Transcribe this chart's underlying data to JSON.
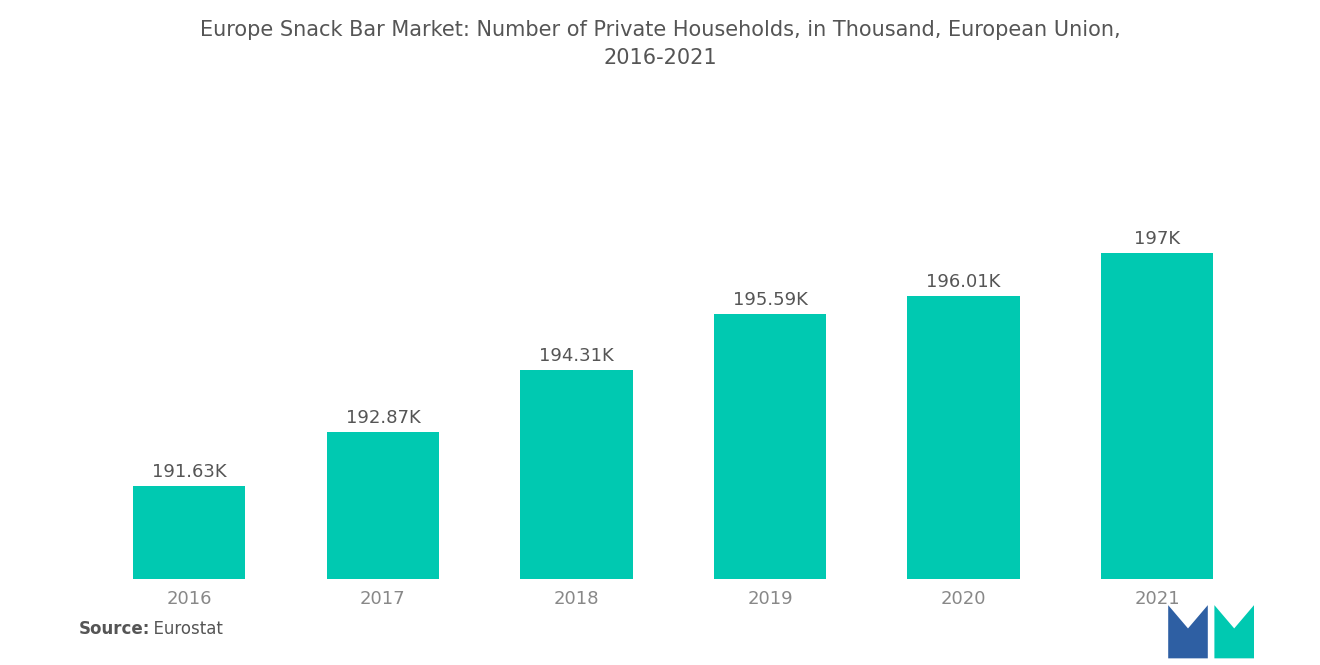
{
  "title_line1": "Europe Snack Bar Market: Number of Private Households, in Thousand, European Union,",
  "title_line2": "2016-2021",
  "categories": [
    "2016",
    "2017",
    "2018",
    "2019",
    "2020",
    "2021"
  ],
  "values": [
    191.63,
    192.87,
    194.31,
    195.59,
    196.01,
    197.0
  ],
  "labels": [
    "191.63K",
    "192.87K",
    "194.31K",
    "195.59K",
    "196.01K",
    "197K"
  ],
  "bar_color": "#00C9B1",
  "background_color": "#ffffff",
  "ylim_min": 189.5,
  "ylim_max": 199.0,
  "source_label_bold": "Source:",
  "source_label_normal": "  Eurostat",
  "title_fontsize": 15,
  "label_fontsize": 13,
  "tick_fontsize": 13,
  "source_fontsize": 12,
  "tick_color": "#888888",
  "title_color": "#555555",
  "label_color": "#555555",
  "bar_width": 0.58,
  "logo_blue": "#2E5FA3",
  "logo_teal": "#00C9B1"
}
